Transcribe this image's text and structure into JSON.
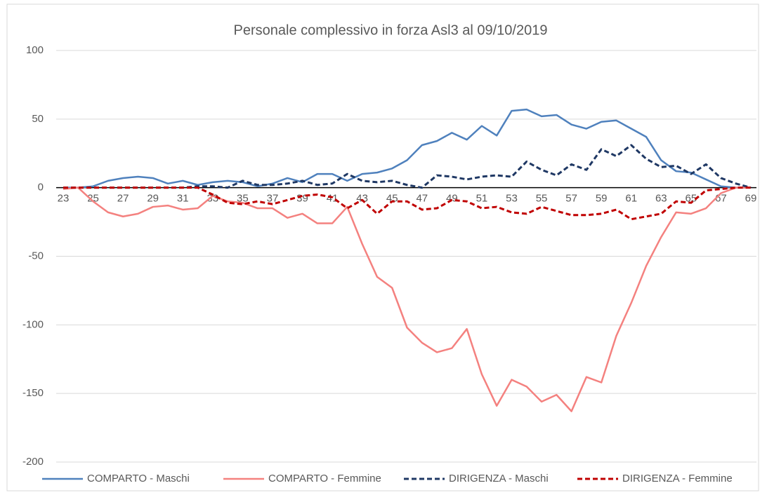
{
  "chart_data": {
    "type": "line",
    "title": "Personale complessivo in forza Asl3 al 09/10/2019",
    "categories": [
      23,
      null,
      25,
      null,
      27,
      null,
      29,
      null,
      31,
      null,
      33,
      null,
      35,
      null,
      37,
      null,
      39,
      null,
      41,
      null,
      43,
      null,
      45,
      null,
      47,
      null,
      49,
      null,
      51,
      null,
      53,
      null,
      55,
      null,
      57,
      null,
      59,
      null,
      61,
      null,
      63,
      null,
      65,
      null,
      67,
      null,
      69
    ],
    "ylim": [
      -200,
      100
    ],
    "yticks": [
      -200,
      -150,
      -100,
      -50,
      0,
      50,
      100
    ],
    "grid": true,
    "legend": "bottom",
    "series": [
      {
        "name": "COMPARTO - Maschi",
        "color": "#4f81bd",
        "dashed": false,
        "values": [
          0,
          0,
          1,
          5,
          7,
          8,
          7,
          3,
          5,
          2,
          4,
          5,
          4,
          1,
          3,
          7,
          4,
          10,
          10,
          5,
          10,
          11,
          14,
          20,
          31,
          34,
          40,
          35,
          45,
          38,
          56,
          57,
          52,
          53,
          46,
          43,
          48,
          49,
          43,
          37,
          20,
          12,
          11,
          6,
          1,
          0,
          0
        ]
      },
      {
        "name": "COMPARTO - Femmine",
        "color": "#f4817f",
        "dashed": false,
        "values": [
          -1,
          0,
          -10,
          -18,
          -21,
          -19,
          -14,
          -13,
          -16,
          -15,
          -6,
          -10,
          -11,
          -15,
          -15,
          -22,
          -19,
          -26,
          -26,
          -14,
          -41,
          -65,
          -73,
          -102,
          -113,
          -120,
          -117,
          -103,
          -136,
          -159,
          -140,
          -145,
          -156,
          -151,
          -163,
          -138,
          -142,
          -108,
          -84,
          -57,
          -36,
          -18,
          -19,
          -15,
          -4,
          0,
          0
        ]
      },
      {
        "name": "DIRIGENZA - Maschi",
        "color": "#1f3864",
        "dashed": true,
        "values": [
          0,
          0,
          0,
          0,
          0,
          0,
          0,
          0,
          0,
          1,
          1,
          0,
          5,
          2,
          2,
          3,
          5,
          2,
          3,
          10,
          5,
          4,
          5,
          2,
          0,
          9,
          8,
          6,
          8,
          9,
          8,
          19,
          13,
          9,
          17,
          13,
          28,
          23,
          31,
          21,
          15,
          16,
          10,
          17,
          7,
          3,
          0
        ]
      },
      {
        "name": "DIRIGENZA - Femmine",
        "color": "#c00000",
        "dashed": true,
        "values": [
          0,
          0,
          0,
          0,
          0,
          0,
          0,
          0,
          0,
          0,
          -5,
          -11,
          -12,
          -10,
          -12,
          -9,
          -6,
          -5,
          -7,
          -15,
          -9,
          -19,
          -10,
          -10,
          -16,
          -15,
          -9,
          -10,
          -15,
          -14,
          -18,
          -19,
          -14,
          -17,
          -20,
          -20,
          -19,
          -16,
          -23,
          -21,
          -19,
          -10,
          -11,
          -2,
          -1,
          0,
          0
        ]
      }
    ]
  }
}
